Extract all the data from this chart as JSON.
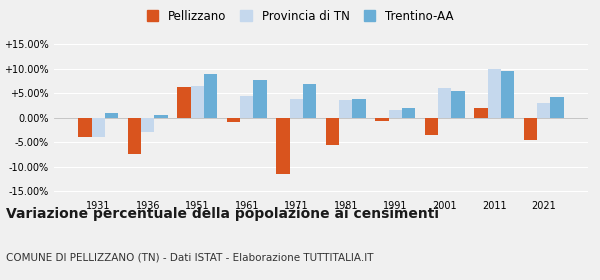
{
  "years": [
    1931,
    1936,
    1951,
    1961,
    1971,
    1981,
    1991,
    2001,
    2011,
    2021
  ],
  "pellizzano": [
    -4.0,
    -7.5,
    6.3,
    -0.8,
    -11.5,
    -5.5,
    -0.7,
    -3.5,
    2.0,
    -4.5
  ],
  "provincia_tn": [
    -4.0,
    -3.0,
    6.5,
    4.5,
    3.7,
    3.5,
    1.5,
    6.0,
    10.0,
    3.0
  ],
  "trentino_aa": [
    1.0,
    0.5,
    8.8,
    7.7,
    6.8,
    3.7,
    2.0,
    5.5,
    9.5,
    4.2
  ],
  "color_pellizzano": "#d9541e",
  "color_provincia": "#c5d8ed",
  "color_trentino": "#6aaed6",
  "ylim_min": -16,
  "ylim_max": 16,
  "yticks": [
    -15,
    -10,
    -5,
    0,
    5,
    10,
    15
  ],
  "title": "Variazione percentuale della popolazione ai censimenti",
  "subtitle": "COMUNE DI PELLIZZANO (TN) - Dati ISTAT - Elaborazione TUTTITALIA.IT",
  "legend_pellizzano": "Pellizzano",
  "legend_provincia": "Provincia di TN",
  "legend_trentino": "Trentino-AA",
  "bar_width": 0.27,
  "background_color": "#f0f0f0",
  "grid_color": "#ffffff",
  "title_fontsize": 10,
  "subtitle_fontsize": 7.5,
  "tick_fontsize": 7,
  "legend_fontsize": 8.5
}
